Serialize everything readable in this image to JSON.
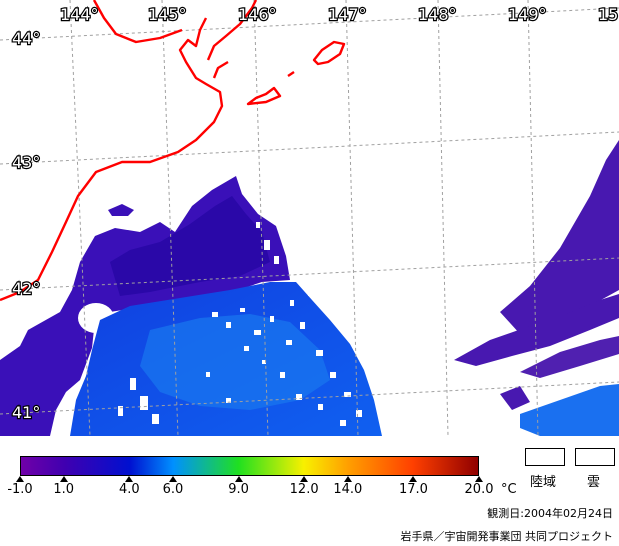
{
  "map": {
    "longitude_labels": [
      "144°",
      "145°",
      "146°",
      "147°",
      "148°",
      "149°",
      "15"
    ],
    "latitude_labels": [
      "44°",
      "43°",
      "42°",
      "41°"
    ],
    "coastline_color": "#ff0000",
    "graticule_color": "#a0a0a0",
    "cloud_color": "#ffffff"
  },
  "colorbar": {
    "stops": [
      {
        "value": -1.0,
        "color": "#7000a8"
      },
      {
        "value": 1.0,
        "color": "#4000b0"
      },
      {
        "value": 4.0,
        "color": "#0010d0"
      },
      {
        "value": 6.0,
        "color": "#0090ff"
      },
      {
        "value": 9.0,
        "color": "#20e020"
      },
      {
        "value": 12.0,
        "color": "#f8f000"
      },
      {
        "value": 14.0,
        "color": "#ffa000"
      },
      {
        "value": 17.0,
        "color": "#ff4000"
      },
      {
        "value": 20.0,
        "color": "#900000"
      }
    ],
    "tick_labels": [
      "-1.0",
      "1.0",
      "4.0",
      "6.0",
      "9.0",
      "12.0",
      "14.0",
      "17.0",
      "20.0"
    ],
    "unit": "°C"
  },
  "legend": {
    "land_label": "陸域",
    "cloud_label": "雲"
  },
  "observation_date": "観測日:2004年02月24日",
  "credit": "岩手県／宇宙開発事業団 共同プロジェクト"
}
